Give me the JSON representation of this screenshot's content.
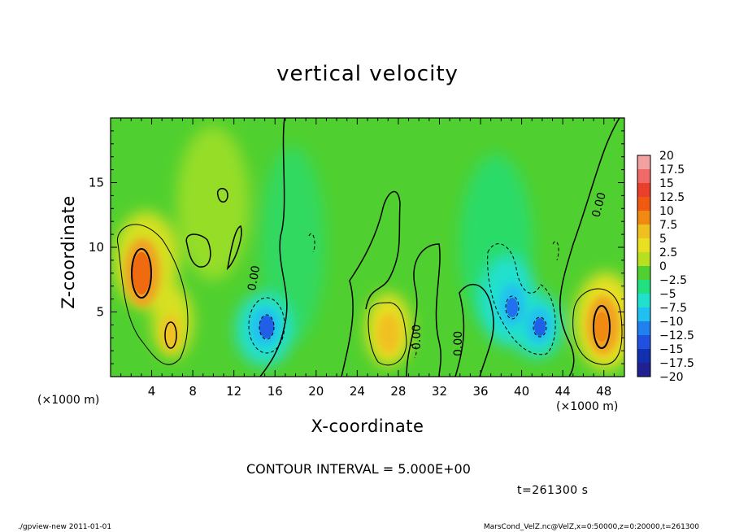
{
  "chart_data": {
    "type": "heatmap",
    "title": "vertical velocity",
    "xlabel": "X-coordinate",
    "ylabel": "Z-coordinate",
    "x_unit_label": "(×1000 m)",
    "x_unit_label_right": "(×1000 m)",
    "xlim": [
      0,
      50
    ],
    "ylim": [
      0,
      20
    ],
    "x_ticks": [
      4,
      8,
      12,
      16,
      20,
      24,
      28,
      32,
      36,
      40,
      44,
      48
    ],
    "y_ticks": [
      5,
      10,
      15
    ],
    "colorbar": {
      "levels": [
        "20",
        "17.5",
        "15",
        "12.5",
        "10",
        "7.5",
        "5",
        "2.5",
        "0",
        "−2.5",
        "−5",
        "−7.5",
        "−10",
        "−12.5",
        "−15",
        "−17.5",
        "−20"
      ],
      "colors": [
        "#f2a0a0",
        "#f06a6a",
        "#e8402a",
        "#f05a10",
        "#f08a10",
        "#f0c020",
        "#e8e020",
        "#b8e020",
        "#50d030",
        "#20e080",
        "#20e0d0",
        "#20c0f0",
        "#2080f0",
        "#2050e0",
        "#1030b0",
        "#202090",
        "#7020b0"
      ]
    },
    "contour_label": "0.00",
    "contour_interval": "CONTOUR INTERVAL = 5.000E+00",
    "features": [
      {
        "x": 3,
        "z": 8.5,
        "value": 12.5
      },
      {
        "x": 6,
        "z": 3,
        "value": 7.5
      },
      {
        "x": 15,
        "z": 4,
        "value": -12.5
      },
      {
        "x": 27,
        "z": 3.5,
        "value": 5
      },
      {
        "x": 39,
        "z": 5.5,
        "value": -10
      },
      {
        "x": 42,
        "z": 4,
        "value": -12.5
      },
      {
        "x": 48,
        "z": 4,
        "value": 12.5
      }
    ]
  },
  "time_label": "t=261300 s",
  "footer": {
    "left": "./gpview-new   2011-01-01",
    "right": "MarsCond_VelZ.nc@VelZ,x=0:50000,z=0:20000,t=261300"
  }
}
